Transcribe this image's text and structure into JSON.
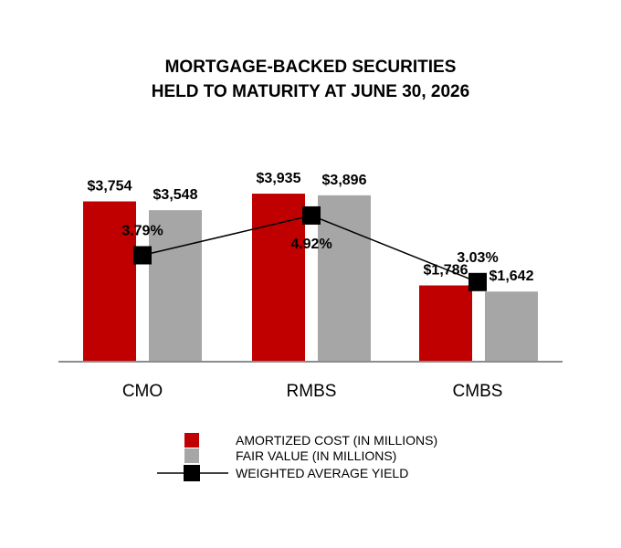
{
  "chart_data": {
    "type": "bar",
    "title_lines": [
      "MORTGAGE-BACKED SECURITIES",
      "HELD TO MATURITY AT JUNE 30, 2026"
    ],
    "categories": [
      "CMO",
      "RMBS",
      "CMBS"
    ],
    "series": [
      {
        "name": "AMORTIZED COST (IN MILLIONS)",
        "values": [
          3754,
          3935,
          1786
        ],
        "labels": [
          "$3,754",
          "$3,935",
          "$1,786"
        ],
        "color": "#c00000"
      },
      {
        "name": "FAIR VALUE (IN MILLIONS)",
        "values": [
          3548,
          3896,
          1642
        ],
        "labels": [
          "$3,548",
          "$3,896",
          "$1,642"
        ],
        "color": "#a6a6a6"
      }
    ],
    "line_series": {
      "name": "WEIGHTED AVERAGE YIELD",
      "values": [
        3.79,
        4.92,
        3.03
      ],
      "labels": [
        "3.79%",
        "4.92%",
        "3.03%"
      ],
      "color": "#000000"
    },
    "legend_position": "bottom-center",
    "grid": false
  }
}
